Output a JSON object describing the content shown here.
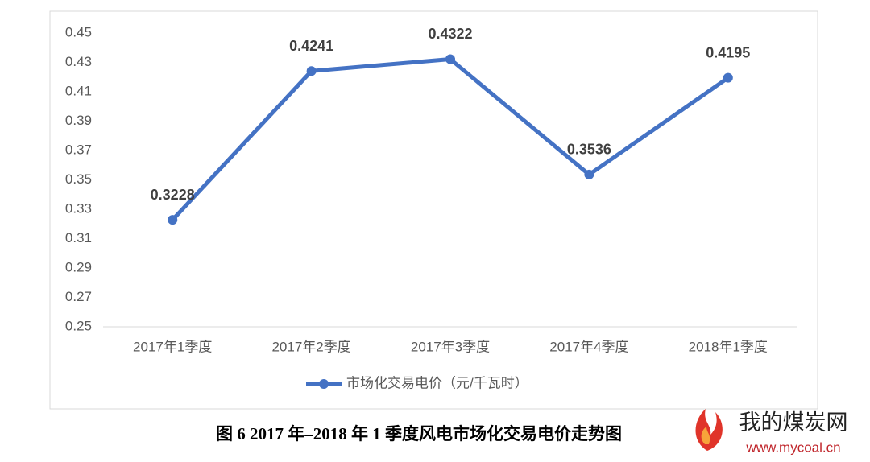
{
  "chart_data": {
    "type": "line",
    "categories": [
      "2017年1季度",
      "2017年2季度",
      "2017年3季度",
      "2017年4季度",
      "2018年1季度"
    ],
    "series": [
      {
        "name": "市场化交易电价（元/千瓦时）",
        "color": "#4472c4",
        "values": [
          0.3228,
          0.4241,
          0.4322,
          0.3536,
          0.4195
        ]
      }
    ],
    "ylim": [
      0.25,
      0.45
    ],
    "yticks": [
      0.25,
      0.27,
      0.29,
      0.31,
      0.33,
      0.35,
      0.37,
      0.39,
      0.41,
      0.43,
      0.45
    ],
    "grid": false,
    "legend": "bottom",
    "caption": "图 6 2017 年–2018 年 1 季度风电市场化交易电价走势图"
  },
  "watermark": {
    "name": "我的煤炭网",
    "url": "www.mycoal.cn"
  }
}
